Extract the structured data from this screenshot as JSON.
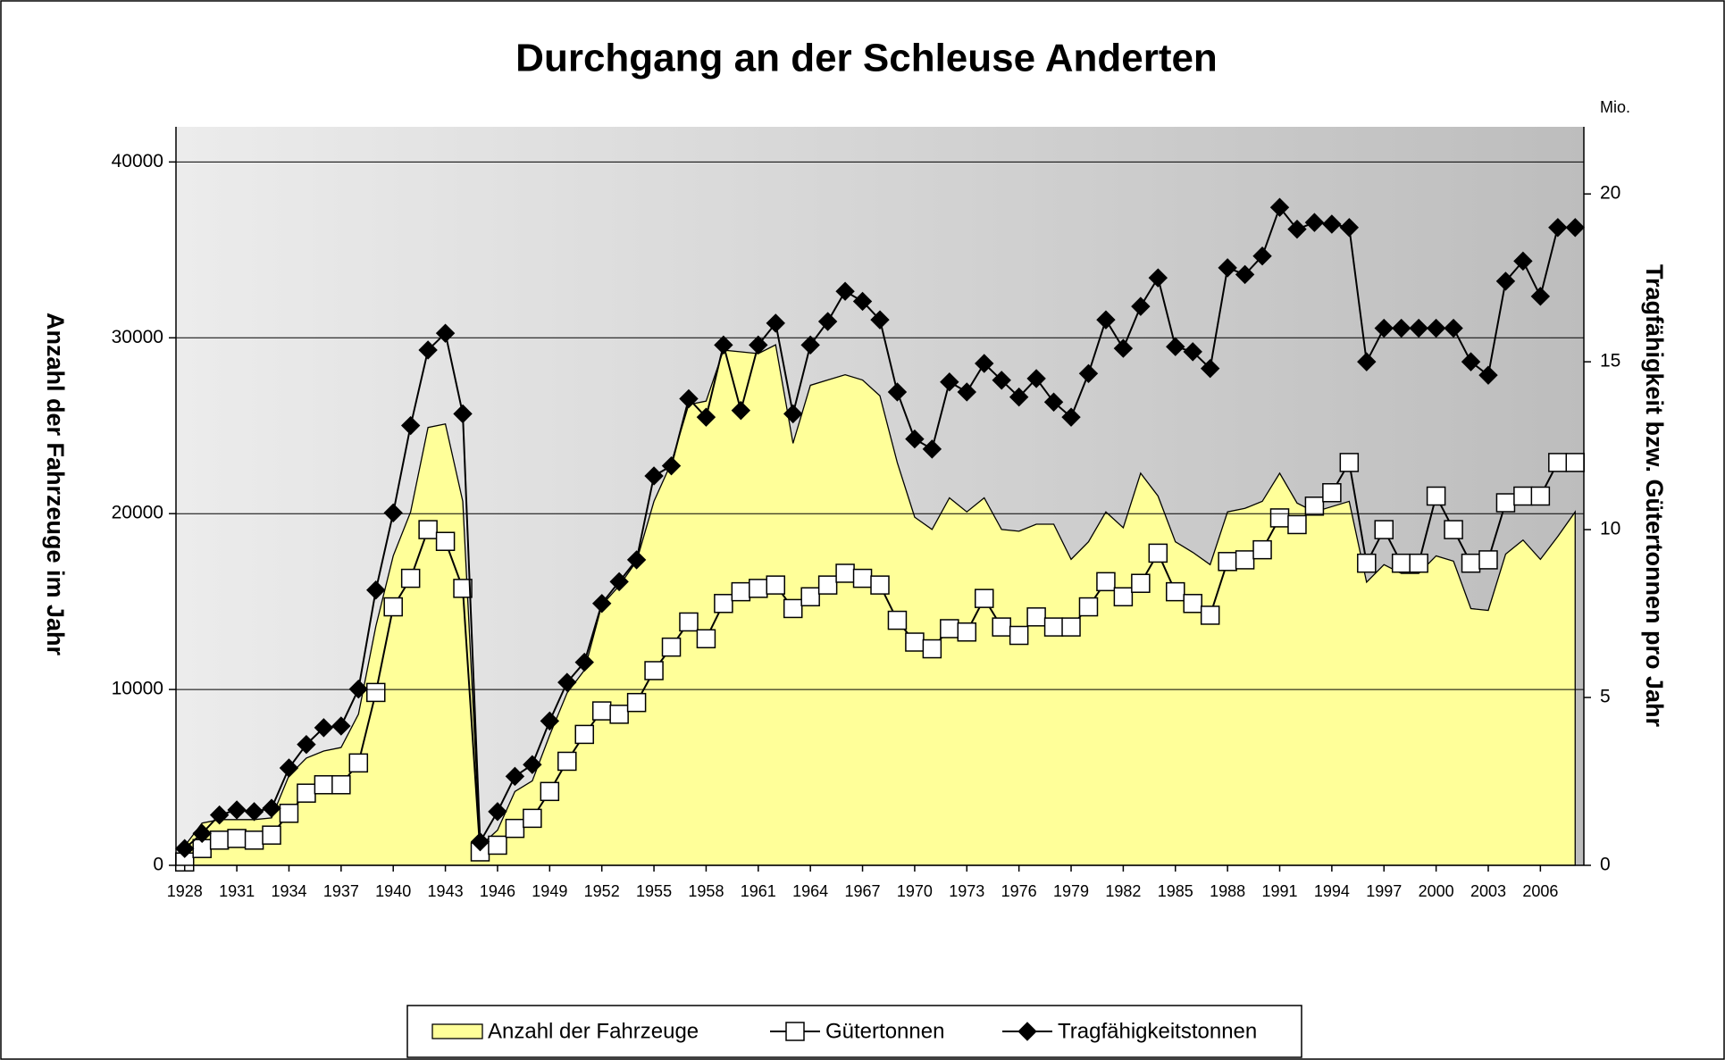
{
  "chart_data": {
    "type": "line",
    "title": "Durchgang an der Schleuse Anderten",
    "y_label": "Anzahl der Fahrzeuge im Jahr",
    "y2_label": "Tragfähigkeit bzw. Gütertonnen pro Jahr",
    "y2_unit": "Mio.",
    "x": [
      1928,
      1929,
      1930,
      1931,
      1932,
      1933,
      1934,
      1935,
      1936,
      1937,
      1938,
      1939,
      1940,
      1941,
      1942,
      1943,
      1944,
      1945,
      1946,
      1947,
      1948,
      1949,
      1950,
      1951,
      1952,
      1953,
      1954,
      1955,
      1956,
      1957,
      1958,
      1959,
      1960,
      1961,
      1962,
      1963,
      1964,
      1965,
      1966,
      1967,
      1968,
      1969,
      1970,
      1971,
      1972,
      1973,
      1974,
      1975,
      1976,
      1977,
      1978,
      1979,
      1980,
      1981,
      1982,
      1983,
      1984,
      1985,
      1986,
      1987,
      1988,
      1989,
      1990,
      1991,
      1992,
      1993,
      1994,
      1995,
      1996,
      1997,
      1998,
      1999,
      2000,
      2001,
      2002,
      2003,
      2004,
      2005,
      2006,
      2007,
      2008
    ],
    "xlim": [
      1927.5,
      2008.5
    ],
    "xticks": [
      1928,
      1931,
      1934,
      1937,
      1940,
      1943,
      1946,
      1949,
      1952,
      1955,
      1958,
      1961,
      1964,
      1967,
      1970,
      1973,
      1976,
      1979,
      1982,
      1985,
      1988,
      1991,
      1994,
      1997,
      2000,
      2003,
      2006
    ],
    "ylim": [
      0,
      42000
    ],
    "yticks": [
      0,
      10000,
      20000,
      30000,
      40000
    ],
    "y2lim": [
      0,
      22
    ],
    "y2ticks": [
      0,
      5,
      10,
      15,
      20
    ],
    "grid": true,
    "legend": "bottom",
    "series": [
      {
        "name": "Anzahl der Fahrzeuge",
        "kind": "area",
        "color": "#ffff99",
        "values": [
          1100,
          2400,
          2600,
          2600,
          2600,
          2700,
          5100,
          6100,
          6500,
          6700,
          8600,
          13600,
          17600,
          20100,
          24900,
          25100,
          20700,
          1100,
          2000,
          4200,
          4800,
          7400,
          9800,
          11100,
          14800,
          15900,
          17300,
          20700,
          22900,
          26200,
          26400,
          29300,
          29200,
          29100,
          29600,
          24000,
          27300,
          27600,
          27900,
          27600,
          26700,
          22900,
          19800,
          19100,
          20900,
          20100,
          20900,
          19100,
          19000,
          19400,
          19400,
          17400,
          18400,
          20100,
          19200,
          22300,
          21000,
          18400,
          17800,
          17100,
          20100,
          20300,
          20700,
          22300,
          20600,
          20100,
          20400,
          20700,
          16100,
          17100,
          16600,
          16600,
          17600,
          17300,
          14600,
          14500,
          17700,
          18500,
          17400,
          18700,
          20100
        ]
      },
      {
        "name": "Gütertonnen",
        "kind": "line",
        "marker": "square",
        "color": "#000000",
        "axis": "y2",
        "values": [
          0.1,
          0.5,
          0.75,
          0.8,
          0.75,
          0.9,
          1.55,
          2.15,
          2.4,
          2.4,
          3.05,
          5.15,
          7.7,
          8.55,
          10.0,
          9.65,
          8.25,
          0.4,
          0.6,
          1.1,
          1.4,
          2.2,
          3.1,
          3.9,
          4.6,
          4.5,
          4.85,
          5.8,
          6.5,
          7.25,
          6.75,
          7.8,
          8.15,
          8.25,
          8.35,
          7.65,
          8.0,
          8.35,
          8.7,
          8.55,
          8.35,
          7.3,
          6.65,
          6.45,
          7.05,
          6.95,
          7.95,
          7.1,
          6.85,
          7.4,
          7.1,
          7.1,
          7.7,
          8.45,
          8.0,
          8.4,
          9.3,
          8.15,
          7.8,
          7.45,
          9.05,
          9.1,
          9.4,
          10.35,
          10.15,
          10.7,
          11.1,
          12.0,
          9.0,
          10.0,
          9.0,
          9.0,
          11.0,
          10.0,
          9.0,
          9.1,
          10.8,
          11.0,
          11.0,
          12.0,
          12.0
        ]
      },
      {
        "name": "Tragfähigkeitstonnen",
        "kind": "line",
        "marker": "diamond",
        "color": "#000000",
        "axis": "y2",
        "values": [
          0.5,
          0.95,
          1.5,
          1.65,
          1.6,
          1.7,
          2.9,
          3.6,
          4.1,
          4.15,
          5.25,
          8.2,
          10.5,
          13.1,
          15.35,
          15.85,
          13.45,
          0.7,
          1.6,
          2.65,
          3.0,
          4.3,
          5.45,
          6.05,
          7.8,
          8.45,
          9.1,
          11.6,
          11.9,
          13.9,
          13.35,
          15.5,
          13.55,
          15.5,
          16.15,
          13.45,
          15.5,
          16.2,
          17.1,
          16.8,
          16.25,
          14.1,
          12.7,
          12.4,
          14.4,
          14.1,
          14.95,
          14.45,
          13.95,
          14.5,
          13.8,
          13.35,
          14.65,
          16.25,
          15.4,
          16.65,
          17.5,
          15.45,
          15.3,
          14.8,
          17.8,
          17.6,
          18.15,
          19.6,
          18.95,
          19.15,
          19.1,
          19.0,
          15.0,
          16.0,
          16.0,
          16.0,
          16.0,
          16.0,
          15.0,
          14.6,
          17.4,
          18.0,
          16.95,
          19.0,
          19.0
        ]
      }
    ]
  }
}
